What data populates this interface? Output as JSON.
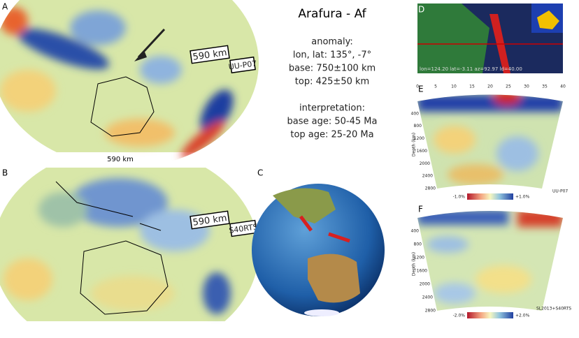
{
  "panel_labels": [
    "A",
    "B",
    "C",
    "D",
    "E",
    "F"
  ],
  "title": "Arafura - Af",
  "anomaly": {
    "heading": "anomaly:",
    "location": "lon, lat: 135°, -7°",
    "base": "base: 750±100 km",
    "top": "top: 425±50 km"
  },
  "interpretation": {
    "heading": "interpretation:",
    "base_age": "base age: 50-45 Ma",
    "top_age": "top age: 25-20 Ma"
  },
  "map_a": {
    "scale": "590 km",
    "model": "UU-P07",
    "caption": "590 km"
  },
  "map_b": {
    "scale": "590 km",
    "model": "S40RTS"
  },
  "map_d": {
    "caption": "lon=124.20 lat=-3.11 az=92.97 ld=40.00"
  },
  "section_e": {
    "top_ticks": [
      "0",
      "5",
      "10",
      "15",
      "20",
      "25",
      "30",
      "35",
      "40"
    ],
    "depth_label": "Depth (km)",
    "depth_ticks": [
      "400",
      "800",
      "1200",
      "1600",
      "2000",
      "2400",
      "2800"
    ],
    "colorbar": [
      "-1.0%",
      "+1.0%"
    ],
    "model": "UU-P07"
  },
  "section_f": {
    "depth_label": "Depth (km)",
    "depth_ticks": [
      "400",
      "800",
      "1200",
      "1600",
      "2000",
      "2400",
      "2800"
    ],
    "colorbar": [
      "-2.0%",
      "+2.0%"
    ],
    "model": "SL2013+S40RTS"
  }
}
